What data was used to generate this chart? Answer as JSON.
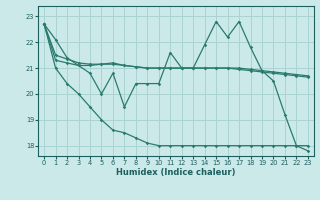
{
  "xlabel": "Humidex (Indice chaleur)",
  "xlim": [
    -0.5,
    23.5
  ],
  "ylim": [
    17.6,
    23.4
  ],
  "yticks": [
    18,
    19,
    20,
    21,
    22,
    23
  ],
  "xticks": [
    0,
    1,
    2,
    3,
    4,
    5,
    6,
    7,
    8,
    9,
    10,
    11,
    12,
    13,
    14,
    15,
    16,
    17,
    18,
    19,
    20,
    21,
    22,
    23
  ],
  "background_color": "#cce9e9",
  "grid_color": "#aad3d3",
  "line_color": "#2a7b6e",
  "line1": [
    22.7,
    22.1,
    21.4,
    21.1,
    20.8,
    20.0,
    20.8,
    19.5,
    20.4,
    20.4,
    20.4,
    21.6,
    21.0,
    21.0,
    21.9,
    22.8,
    22.2,
    22.8,
    21.8,
    20.9,
    20.5,
    19.2,
    18.0,
    17.8
  ],
  "line2": [
    22.7,
    21.5,
    21.35,
    21.2,
    21.15,
    21.15,
    21.15,
    21.1,
    21.05,
    21.0,
    21.0,
    21.0,
    21.0,
    21.0,
    21.0,
    21.0,
    21.0,
    21.0,
    20.95,
    20.9,
    20.85,
    20.8,
    20.75,
    20.7
  ],
  "line3": [
    22.7,
    21.3,
    21.2,
    21.1,
    21.1,
    21.15,
    21.2,
    21.1,
    21.05,
    21.0,
    21.0,
    21.0,
    21.0,
    21.0,
    21.0,
    21.0,
    21.0,
    20.95,
    20.9,
    20.85,
    20.8,
    20.75,
    20.7,
    20.65
  ],
  "line4": [
    22.7,
    21.0,
    20.4,
    20.0,
    19.5,
    19.0,
    18.6,
    18.5,
    18.3,
    18.1,
    18.0,
    18.0,
    18.0,
    18.0,
    18.0,
    18.0,
    18.0,
    18.0,
    18.0,
    18.0,
    18.0,
    18.0,
    18.0,
    18.0
  ]
}
